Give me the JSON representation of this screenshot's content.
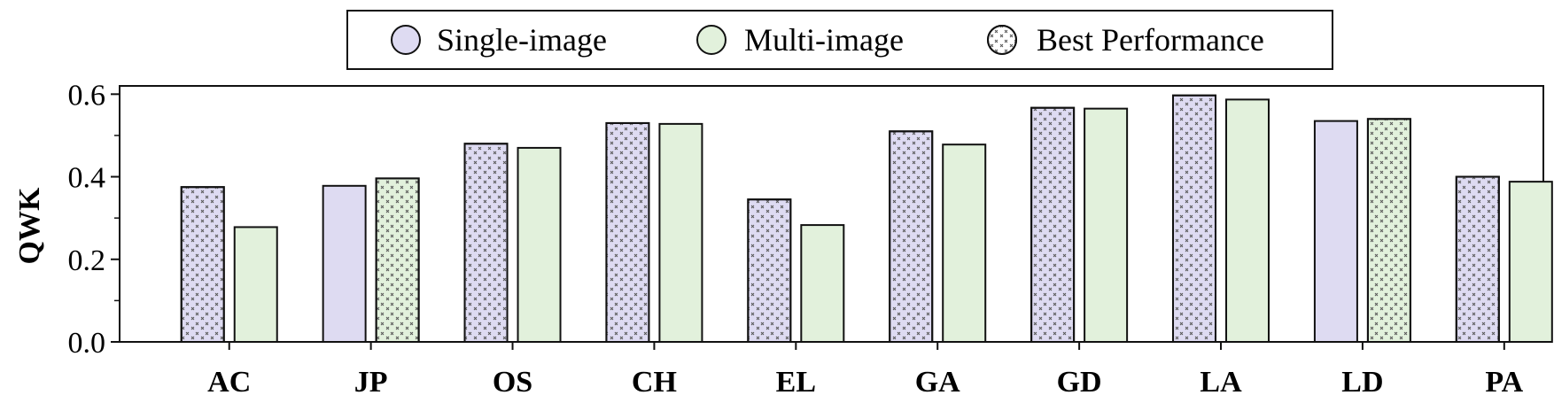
{
  "colors": {
    "single": "#dedbf2",
    "multi": "#e2f1dc",
    "stroke": "#111111",
    "pattern_ink": "#555555"
  },
  "legend": {
    "position": "top-center",
    "items": [
      {
        "label": "Single-image",
        "swatch": "single"
      },
      {
        "label": "Multi-image",
        "swatch": "multi"
      },
      {
        "label": "Best Performance",
        "swatch": "best"
      }
    ]
  },
  "chart_data": {
    "type": "bar",
    "title": "",
    "xlabel": "",
    "ylabel": "QWK",
    "ylim": [
      0,
      0.62
    ],
    "yticks": [
      "0.0",
      "0.2",
      "0.4",
      "0.6"
    ],
    "grid": false,
    "categories": [
      "AC",
      "JP",
      "OS",
      "CH",
      "EL",
      "GA",
      "GD",
      "LA",
      "LD",
      "PA"
    ],
    "series": [
      {
        "name": "Single-image",
        "color_key": "single",
        "values": [
          0.375,
          0.378,
          0.48,
          0.53,
          0.345,
          0.51,
          0.567,
          0.597,
          0.535,
          0.4
        ],
        "best": [
          true,
          false,
          true,
          true,
          true,
          true,
          true,
          true,
          false,
          true
        ]
      },
      {
        "name": "Multi-image",
        "color_key": "multi",
        "values": [
          0.278,
          0.396,
          0.47,
          0.528,
          0.283,
          0.478,
          0.565,
          0.587,
          0.54,
          0.388
        ],
        "best": [
          false,
          true,
          false,
          false,
          false,
          false,
          false,
          false,
          true,
          false
        ]
      }
    ]
  }
}
